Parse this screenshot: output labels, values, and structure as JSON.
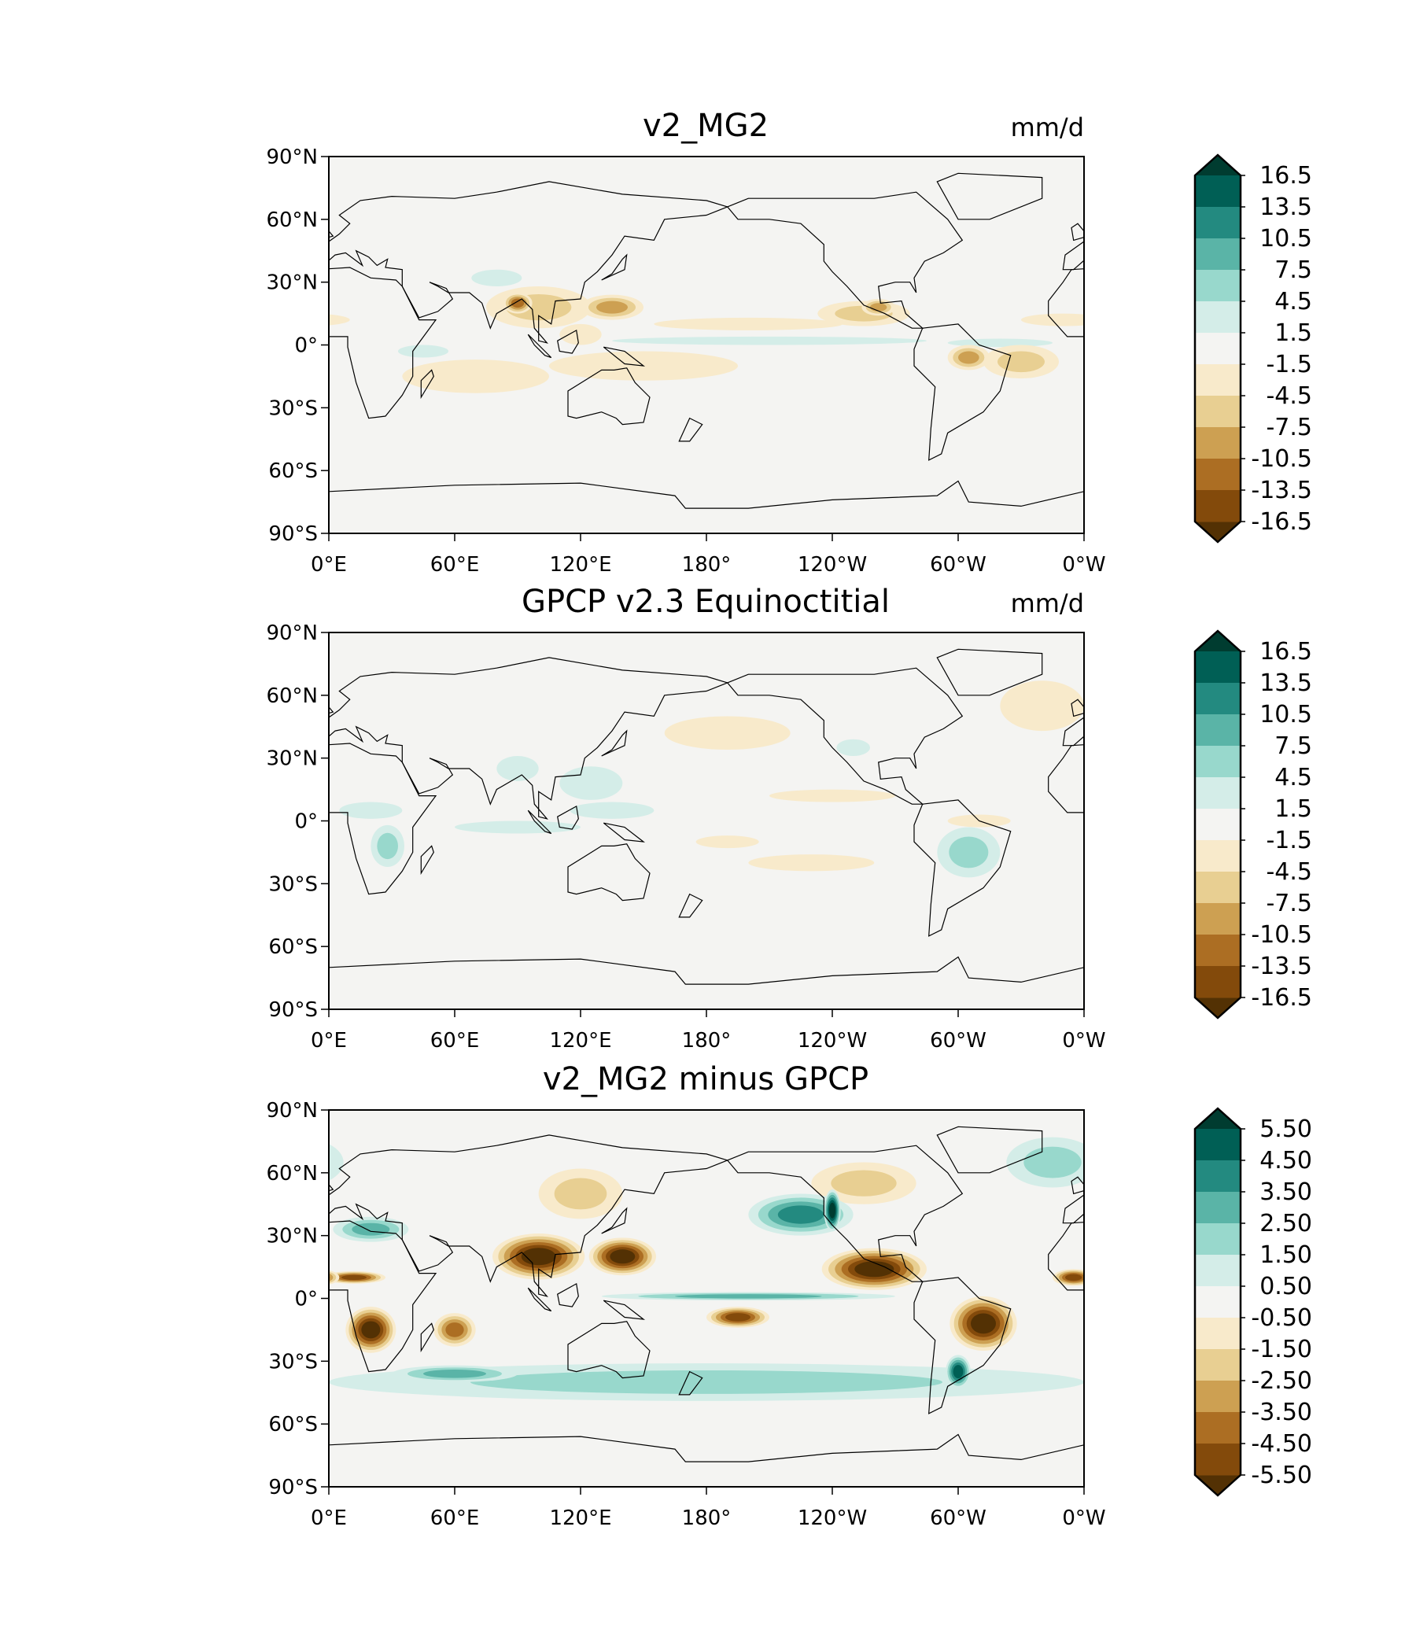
{
  "chart_data": [
    {
      "type": "heatmap",
      "title": "v2_MG2",
      "units": "mm/d",
      "xlim": [
        0,
        360
      ],
      "ylim": [
        -90,
        90
      ],
      "lon_ticks": [
        "0°E",
        "60°E",
        "120°E",
        "180°",
        "120°W",
        "60°W",
        "0°W"
      ],
      "lat_ticks": [
        "90°N",
        "60°N",
        "30°N",
        "0°",
        "30°S",
        "60°S",
        "90°S"
      ],
      "colorbar": {
        "extend": "both",
        "levels": [
          -16.5,
          -13.5,
          -10.5,
          -7.5,
          -4.5,
          -1.5,
          1.5,
          4.5,
          7.5,
          10.5,
          13.5,
          16.5
        ],
        "labels": [
          "16.5",
          "13.5",
          "10.5",
          "7.5",
          "4.5",
          "1.5",
          "-1.5",
          "-4.5",
          "-7.5",
          "-10.5",
          "-13.5",
          "-16.5"
        ]
      },
      "features": [
        [
          100,
          18,
          25,
          10,
          -5
        ],
        [
          135,
          18,
          15,
          6,
          -9
        ],
        [
          90,
          20,
          7,
          5,
          -11
        ],
        [
          255,
          15,
          22,
          6,
          -6
        ],
        [
          262,
          18,
          8,
          4,
          -10
        ],
        [
          200,
          10,
          45,
          3,
          -3
        ],
        [
          150,
          -10,
          45,
          7,
          -3
        ],
        [
          70,
          -15,
          35,
          8,
          -2
        ],
        [
          330,
          -8,
          18,
          8,
          -5
        ],
        [
          305,
          -6,
          10,
          6,
          -8
        ],
        [
          350,
          12,
          20,
          3,
          -3
        ],
        [
          210,
          2,
          75,
          2,
          2
        ],
        [
          320,
          1,
          25,
          2,
          3
        ],
        [
          80,
          32,
          12,
          4,
          2
        ],
        [
          45,
          -3,
          12,
          3,
          2
        ],
        [
          120,
          5,
          10,
          5,
          -4
        ]
      ]
    },
    {
      "type": "heatmap",
      "title": "GPCP v2.3 Equinoctitial",
      "units": "mm/d",
      "xlim": [
        0,
        360
      ],
      "ylim": [
        -90,
        90
      ],
      "lon_ticks": [
        "0°E",
        "60°E",
        "120°E",
        "180°",
        "120°W",
        "60°W",
        "0°W"
      ],
      "lat_ticks": [
        "90°N",
        "60°N",
        "30°N",
        "0°",
        "30°S",
        "60°S",
        "90°S"
      ],
      "colorbar": {
        "extend": "both",
        "levels": [
          -16.5,
          -13.5,
          -10.5,
          -7.5,
          -4.5,
          -1.5,
          1.5,
          4.5,
          7.5,
          10.5,
          13.5,
          16.5
        ],
        "labels": [
          "16.5",
          "13.5",
          "10.5",
          "7.5",
          "4.5",
          "1.5",
          "-1.5",
          "-4.5",
          "-7.5",
          "-10.5",
          "-13.5",
          "-16.5"
        ]
      },
      "features": [
        [
          28,
          -12,
          8,
          10,
          5
        ],
        [
          90,
          25,
          10,
          6,
          3
        ],
        [
          125,
          18,
          15,
          8,
          3
        ],
        [
          135,
          5,
          20,
          4,
          2
        ],
        [
          90,
          -3,
          30,
          3,
          2
        ],
        [
          305,
          -15,
          15,
          12,
          5
        ],
        [
          250,
          35,
          8,
          4,
          3
        ],
        [
          190,
          42,
          30,
          8,
          -2
        ],
        [
          340,
          55,
          20,
          12,
          -2
        ],
        [
          240,
          12,
          30,
          3,
          -3
        ],
        [
          310,
          0,
          15,
          3,
          -4
        ],
        [
          230,
          -20,
          30,
          4,
          -2
        ],
        [
          190,
          -10,
          15,
          3,
          -3
        ],
        [
          20,
          5,
          15,
          4,
          2
        ]
      ]
    },
    {
      "type": "heatmap",
      "title": "v2_MG2 minus GPCP",
      "units": "",
      "xlim": [
        0,
        360
      ],
      "ylim": [
        -90,
        90
      ],
      "lon_ticks": [
        "0°E",
        "60°E",
        "120°E",
        "180°",
        "120°W",
        "60°W",
        "0°W"
      ],
      "lat_ticks": [
        "90°N",
        "60°N",
        "30°N",
        "0°",
        "30°S",
        "60°S",
        "90°S"
      ],
      "colorbar": {
        "extend": "both",
        "levels": [
          -5.5,
          -4.5,
          -3.5,
          -2.5,
          -1.5,
          -0.5,
          0.5,
          1.5,
          2.5,
          3.5,
          4.5,
          5.5
        ],
        "labels": [
          "5.50",
          "4.50",
          "3.50",
          "2.50",
          "1.50",
          "0.50",
          "-0.50",
          "-1.50",
          "-2.50",
          "-3.50",
          "-4.50",
          "-5.50"
        ]
      },
      "features": [
        [
          180,
          -40,
          180,
          9,
          1.6
        ],
        [
          200,
          1,
          70,
          2,
          3
        ],
        [
          345,
          65,
          22,
          12,
          2
        ],
        [
          20,
          33,
          18,
          6,
          2.5
        ],
        [
          225,
          40,
          25,
          10,
          3.5
        ],
        [
          240,
          42,
          4,
          10,
          6
        ],
        [
          60,
          -36,
          30,
          4,
          2.8
        ],
        [
          300,
          -35,
          6,
          8,
          5
        ],
        [
          120,
          50,
          20,
          12,
          -2
        ],
        [
          255,
          55,
          25,
          10,
          -1.6
        ],
        [
          100,
          20,
          22,
          11,
          -6
        ],
        [
          140,
          20,
          16,
          9,
          -6
        ],
        [
          260,
          14,
          25,
          10,
          -6
        ],
        [
          20,
          -15,
          12,
          11,
          -6
        ],
        [
          312,
          -12,
          16,
          13,
          -6
        ],
        [
          195,
          -9,
          15,
          5,
          -5
        ],
        [
          12,
          10,
          15,
          3,
          -5
        ],
        [
          355,
          10,
          10,
          4,
          -5
        ],
        [
          60,
          -15,
          10,
          8,
          -4
        ]
      ]
    }
  ],
  "palette": {
    "negative": [
      "#f8eacb",
      "#e8cf92",
      "#cda052",
      "#ac6e23",
      "#834a0b",
      "#533104"
    ],
    "positive": [
      "#d4ede8",
      "#98d8cc",
      "#5ab4a7",
      "#238a80",
      "#005f55",
      "#003c30"
    ],
    "neutral": "#f4f4f2"
  }
}
